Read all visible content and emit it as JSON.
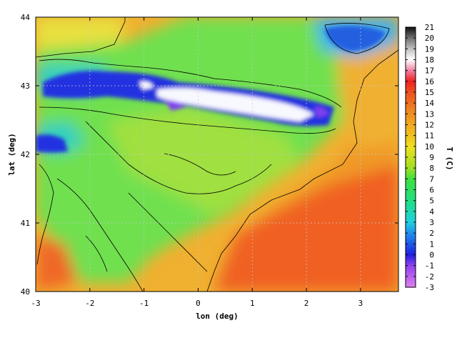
{
  "chart_data": {
    "type": "heatmap",
    "title": "",
    "xlabel": "lon (deg)",
    "ylabel": "lat (deg)",
    "colorbar_label": "T (C)",
    "xlim": [
      -3,
      3.7
    ],
    "ylim": [
      40,
      44
    ],
    "x_ticks": [
      -3,
      -2,
      -1,
      0,
      1,
      2,
      3
    ],
    "y_ticks": [
      40,
      41,
      42,
      43,
      44
    ],
    "colorbar_range": [
      -3,
      21
    ],
    "colorbar_ticks": [
      -3,
      -2,
      -1,
      0,
      1,
      2,
      3,
      4,
      5,
      6,
      7,
      8,
      9,
      10,
      11,
      12,
      13,
      14,
      15,
      16,
      17,
      18,
      19,
      20,
      21
    ],
    "colormap": [
      {
        "value": -3,
        "color": "#e080f0"
      },
      {
        "value": -1,
        "color": "#9040f0"
      },
      {
        "value": 0,
        "color": "#2020e0"
      },
      {
        "value": 2,
        "color": "#2090f0"
      },
      {
        "value": 3,
        "color": "#20d0e0"
      },
      {
        "value": 5,
        "color": "#20e080"
      },
      {
        "value": 7,
        "color": "#40e040"
      },
      {
        "value": 8,
        "color": "#a0e020"
      },
      {
        "value": 10,
        "color": "#f0e020"
      },
      {
        "value": 11,
        "color": "#f0c020"
      },
      {
        "value": 13,
        "color": "#f09020"
      },
      {
        "value": 15,
        "color": "#f05020"
      },
      {
        "value": 16,
        "color": "#f02020"
      },
      {
        "value": 17,
        "color": "#f080a0"
      },
      {
        "value": 18,
        "color": "#ffffff"
      },
      {
        "value": 19,
        "color": "#c0c0c0"
      },
      {
        "value": 20,
        "color": "#707070"
      },
      {
        "value": 21,
        "color": "#101010"
      }
    ],
    "grid": true,
    "field_description_points": [
      {
        "lon": -1.0,
        "lat": 42.9,
        "value": 1
      },
      {
        "lon": 0.5,
        "lat": 42.8,
        "value": 18
      },
      {
        "lon": 1.5,
        "lat": 42.7,
        "value": 17
      },
      {
        "lon": 2.2,
        "lat": 42.5,
        "value": 1
      },
      {
        "lon": 0.0,
        "lat": 42.4,
        "value": 6
      },
      {
        "lon": -2.8,
        "lat": 42.1,
        "value": 1
      },
      {
        "lon": -2.0,
        "lat": 41.5,
        "value": 7
      },
      {
        "lon": 0.0,
        "lat": 41.4,
        "value": 6
      },
      {
        "lon": 1.5,
        "lat": 40.5,
        "value": 14
      },
      {
        "lon": 3.0,
        "lat": 41.5,
        "value": 13
      },
      {
        "lon": 3.0,
        "lat": 42.3,
        "value": 12
      },
      {
        "lon": 2.6,
        "lat": 43.7,
        "value": 2
      },
      {
        "lon": -2.0,
        "lat": 43.8,
        "value": 9
      },
      {
        "lon": -2.9,
        "lat": 40.4,
        "value": 13
      }
    ]
  }
}
